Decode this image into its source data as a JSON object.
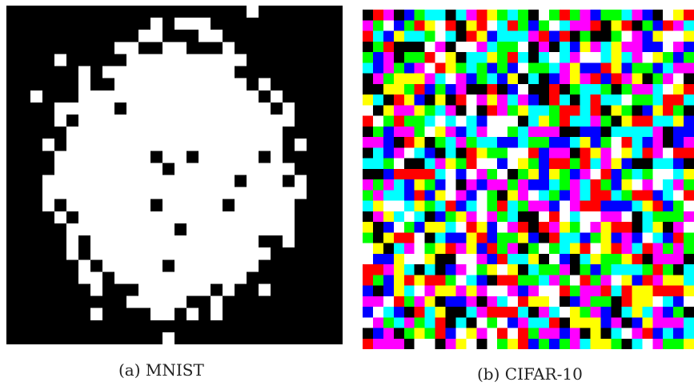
{
  "figure": {
    "panels": [
      {
        "caption": "(a) MNIST",
        "image_description_icon": "binary-noise-digit-image",
        "colors": {
          "foreground": "#ffffff",
          "background": "#000000"
        }
      },
      {
        "caption": "(b) CIFAR-10",
        "image_description_icon": "rgb-noise-pixel-grid-image",
        "palette": [
          "#000000",
          "#ff0000",
          "#00ff00",
          "#0000ff",
          "#ffff00",
          "#ff00ff",
          "#00ffff",
          "#ffffff"
        ]
      }
    ]
  }
}
